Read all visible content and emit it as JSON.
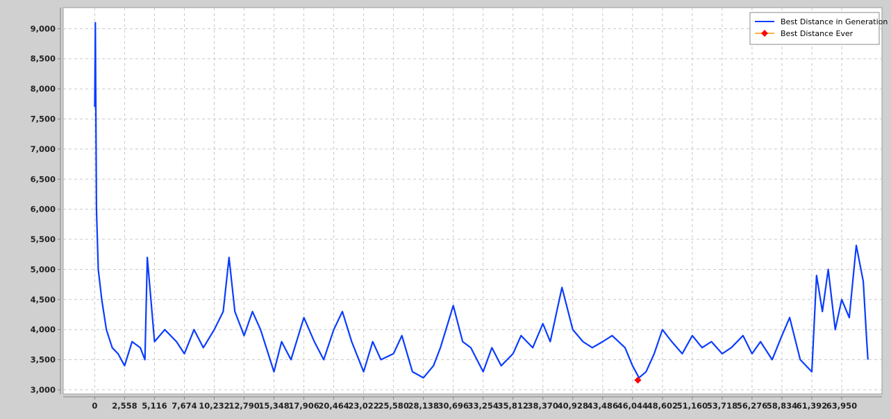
{
  "chart_data": {
    "type": "line",
    "title": "",
    "xlabel": "",
    "ylabel": "",
    "xlim": [
      -2700,
      67400
    ],
    "ylim": [
      2930,
      9350
    ],
    "x_ticks": [
      0,
      2558,
      5116,
      7674,
      10232,
      12790,
      15348,
      17906,
      20464,
      23022,
      25580,
      28138,
      30696,
      33254,
      35812,
      38370,
      40928,
      43486,
      46044,
      48602,
      51160,
      53718,
      56276,
      58834,
      61392,
      63950
    ],
    "x_tick_labels": [
      "0",
      "2,558",
      "5,116",
      "7,674",
      "10,232",
      "12,790",
      "15,348",
      "17,906",
      "20,464",
      "23,022",
      "25,580",
      "28,138",
      "30,696",
      "33,254",
      "35,812",
      "38,370",
      "40,928",
      "43,486",
      "46,044",
      "48,602",
      "51,160",
      "53,718",
      "56,276",
      "58,834",
      "61,392",
      "63,950"
    ],
    "y_ticks": [
      3000,
      3500,
      4000,
      4500,
      5000,
      5500,
      6000,
      6500,
      7000,
      7500,
      8000,
      8500,
      9000
    ],
    "y_tick_labels": [
      "3,000",
      "3,500",
      "4,000",
      "4,500",
      "5,000",
      "5,500",
      "6,000",
      "6,500",
      "7,000",
      "7,500",
      "8,000",
      "8,500",
      "9,000"
    ],
    "grid": true,
    "legend_position": "top-right",
    "series": [
      {
        "name": "Best Distance in Generation",
        "color": "#0a3cff",
        "x": [
          0,
          50,
          150,
          300,
          600,
          1000,
          1500,
          2000,
          2558,
          3200,
          3900,
          4300,
          4500,
          5116,
          6000,
          7000,
          7674,
          8500,
          9300,
          10232,
          11000,
          11500,
          12000,
          12790,
          13500,
          14200,
          15348,
          16000,
          16800,
          17906,
          18800,
          19600,
          20464,
          21200,
          22000,
          23022,
          23800,
          24500,
          25580,
          26300,
          27200,
          28138,
          29000,
          29600,
          30696,
          31500,
          32200,
          33254,
          34000,
          34800,
          35812,
          36500,
          37500,
          38370,
          39000,
          40000,
          40928,
          41800,
          42600,
          43486,
          44300,
          45400,
          46044,
          46600,
          47200,
          47900,
          48602,
          49400,
          50300,
          51160,
          52000,
          52800,
          53718,
          54500,
          55500,
          56276,
          57000,
          58000,
          58834,
          59500,
          60400,
          61392,
          61800,
          62300,
          62800,
          63400,
          63950,
          64600,
          65200,
          65800,
          66100,
          66200
        ],
        "values": [
          7700,
          9100,
          6000,
          5000,
          4500,
          4000,
          3700,
          3600,
          3400,
          3800,
          3700,
          3500,
          5200,
          3800,
          4000,
          3800,
          3600,
          4000,
          3700,
          4000,
          4300,
          5200,
          4300,
          3900,
          4300,
          4000,
          3300,
          3800,
          3500,
          4200,
          3800,
          3500,
          4000,
          4300,
          3800,
          3300,
          3800,
          3500,
          3600,
          3900,
          3300,
          3200,
          3400,
          3700,
          4400,
          3800,
          3700,
          3300,
          3700,
          3400,
          3600,
          3900,
          3700,
          4100,
          3800,
          4700,
          4000,
          3800,
          3700,
          3800,
          3900,
          3700,
          3400,
          3200,
          3300,
          3600,
          4000,
          3800,
          3600,
          3900,
          3700,
          3800,
          3600,
          3700,
          3900,
          3600,
          3800,
          3500,
          3900,
          4200,
          3500,
          3300,
          4900,
          4300,
          5000,
          4000,
          4500,
          4200,
          5400,
          4800,
          3800,
          3500
        ]
      },
      {
        "name": "Best Distance Ever",
        "color": "#ff0000",
        "line_color": "#ff9900",
        "x": [
          46500
        ],
        "values": [
          3160
        ]
      }
    ]
  }
}
